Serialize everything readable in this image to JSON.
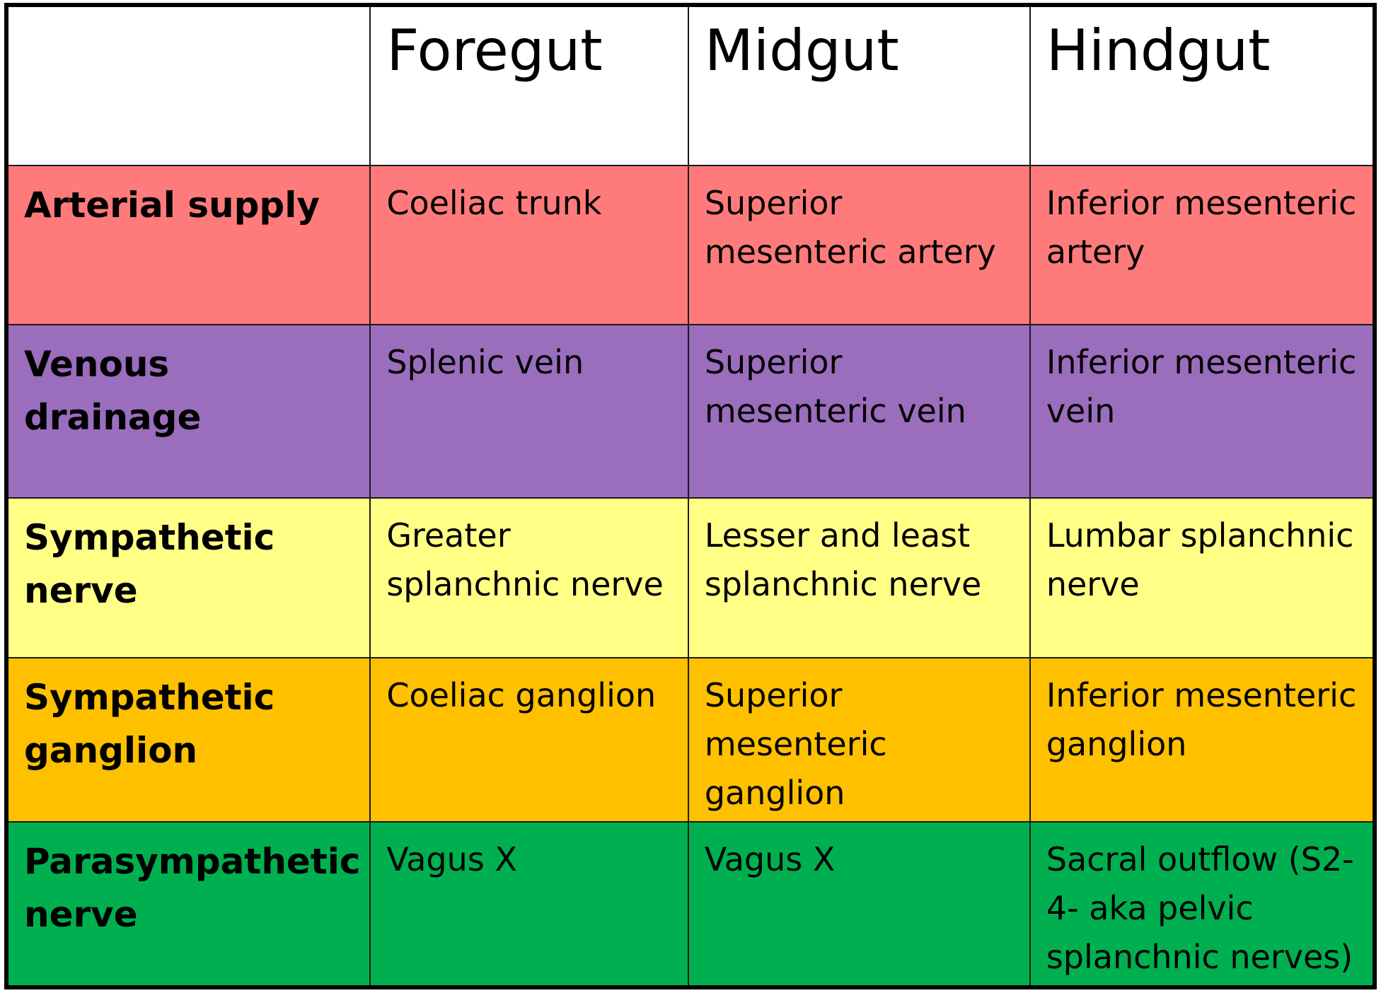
{
  "colors": {
    "arterial": "#ff7b7b",
    "venous": "#9b6dbd",
    "sympathetic_nerve": "#ffff86",
    "sympathetic_ganglion": "#ffc000",
    "parasympathetic": "#00b050",
    "header": "#ffffff",
    "border": "#000000"
  },
  "table": {
    "header": {
      "corner": "",
      "columns": [
        "Foregut",
        "Midgut",
        "Hindgut"
      ]
    },
    "rows": [
      {
        "label": "Arterial supply",
        "color_key": "arterial",
        "cells": [
          "Coeliac trunk",
          "Superior mesenteric artery",
          "Inferior mesenteric artery"
        ]
      },
      {
        "label": "Venous drainage",
        "color_key": "venous",
        "cells": [
          "Splenic vein",
          "Superior mesenteric vein",
          "Inferior mesenteric vein"
        ]
      },
      {
        "label": "Sympathetic nerve",
        "color_key": "sympathetic_nerve",
        "cells": [
          "Greater splanchnic nerve",
          "Lesser and  least splanchnic nerve",
          "Lumbar splanchnic nerve"
        ]
      },
      {
        "label": "Sympathetic ganglion",
        "color_key": "sympathetic_ganglion",
        "cells": [
          "Coeliac ganglion",
          "Superior mesenteric ganglion",
          "Inferior mesenteric ganglion"
        ]
      },
      {
        "label": "Parasympathetic nerve",
        "color_key": "parasympathetic",
        "cells": [
          "Vagus X",
          "Vagus X",
          "Sacral outflow (S2-4- aka pelvic splanchnic nerves)"
        ]
      }
    ]
  }
}
